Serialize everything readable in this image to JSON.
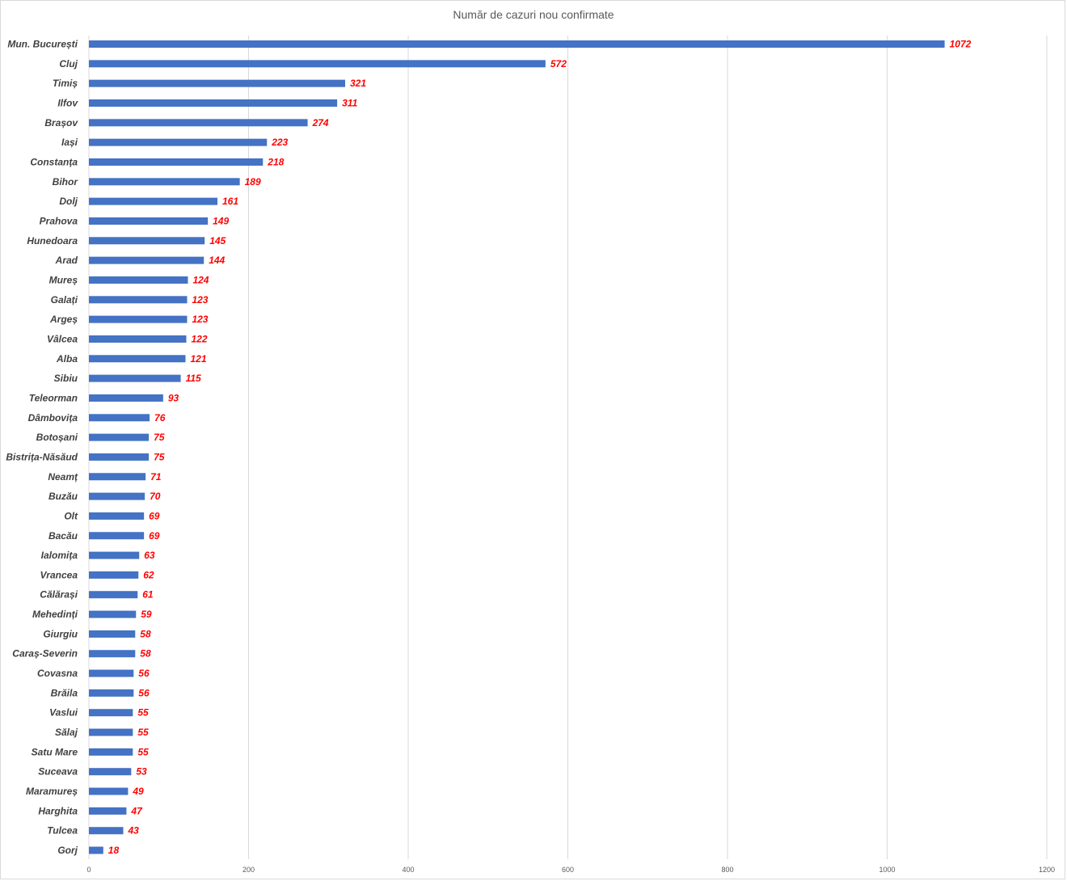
{
  "chart_data": {
    "type": "bar",
    "orientation": "horizontal",
    "title": "Număr de cazuri nou confirmate",
    "xlabel": "",
    "ylabel": "",
    "xlim": [
      0,
      1200
    ],
    "ticks": [
      0,
      200,
      400,
      600,
      800,
      1000,
      1200
    ],
    "grid": true,
    "legend": "none",
    "bar_color": "#4472c4",
    "label_color": "#ff0000",
    "categories": [
      "Mun. București",
      "Cluj",
      "Timiș",
      "Ilfov",
      "Brașov",
      "Iași",
      "Constanța",
      "Bihor",
      "Dolj",
      "Prahova",
      "Hunedoara",
      "Arad",
      "Mureș",
      "Galați",
      "Argeș",
      "Vâlcea",
      "Alba",
      "Sibiu",
      "Teleorman",
      "Dâmbovița",
      "Botoșani",
      "Bistrița-Năsăud",
      "Neamț",
      "Buzău",
      "Olt",
      "Bacău",
      "Ialomița",
      "Vrancea",
      "Călărași",
      "Mehedinți",
      "Giurgiu",
      "Caraș-Severin",
      "Covasna",
      "Brăila",
      "Vaslui",
      "Sălaj",
      "Satu Mare",
      "Suceava",
      "Maramureș",
      "Harghita",
      "Tulcea",
      "Gorj"
    ],
    "values": [
      1072,
      572,
      321,
      311,
      274,
      223,
      218,
      189,
      161,
      149,
      145,
      144,
      124,
      123,
      123,
      122,
      121,
      115,
      93,
      76,
      75,
      75,
      71,
      70,
      69,
      69,
      63,
      62,
      61,
      59,
      58,
      58,
      56,
      56,
      55,
      55,
      55,
      53,
      49,
      47,
      43,
      18
    ]
  }
}
